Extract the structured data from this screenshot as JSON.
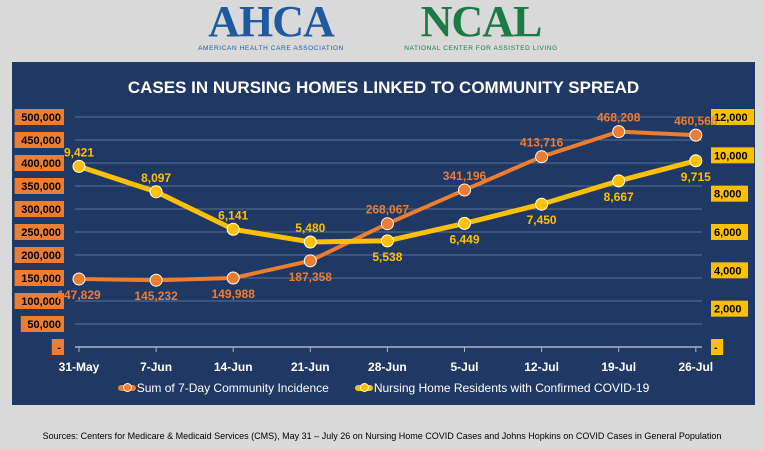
{
  "logos": {
    "ahca": {
      "name": "AHCA",
      "subtitle": "AMERICAN HEALTH CARE ASSOCIATION"
    },
    "ncal": {
      "name": "NCAL",
      "subtitle": "NATIONAL CENTER FOR ASSISTED LIVING"
    }
  },
  "colors": {
    "background": "#d9d9d9",
    "panel": "#203864",
    "orange": "#ed7d31",
    "yellow": "#ffc000"
  },
  "chart_data": {
    "type": "line",
    "title": "CASES IN NURSING HOMES LINKED TO COMMUNITY SPREAD",
    "categories": [
      "31-May",
      "7-Jun",
      "14-Jun",
      "21-Jun",
      "28-Jun",
      "5-Jul",
      "12-Jul",
      "19-Jul",
      "26-Jul"
    ],
    "left_axis": {
      "range": [
        0,
        500000
      ],
      "ticks": [
        "-",
        "50,000",
        "100,000",
        "150,000",
        "200,000",
        "250,000",
        "300,000",
        "350,000",
        "400,000",
        "450,000",
        "500,000"
      ]
    },
    "right_axis": {
      "range": [
        0,
        12000
      ],
      "ticks": [
        "-",
        "2,000",
        "4,000",
        "6,000",
        "8,000",
        "10,000",
        "12,000"
      ]
    },
    "grid": true,
    "legend": "bottom",
    "series": [
      {
        "name": "Sum of 7-Day Community Incidence",
        "axis": "left",
        "color": "#ed7d31",
        "values": [
          147829,
          145232,
          149988,
          187358,
          268067,
          341196,
          413716,
          468208,
          460568
        ],
        "labels": [
          "147,829",
          "145,232",
          "149,988",
          "187,358",
          "268,067",
          "341,196",
          "413,716",
          "468,208",
          "460,568"
        ]
      },
      {
        "name": "Nursing Home Residents with Confirmed COVID-19",
        "axis": "right",
        "color": "#ffc000",
        "values": [
          9421,
          8097,
          6141,
          5480,
          5538,
          6449,
          7450,
          8667,
          9715
        ],
        "labels": [
          "9,421",
          "8,097",
          "6,141",
          "5,480",
          "5,538",
          "6,449",
          "7,450",
          "8,667",
          "9,715"
        ]
      }
    ]
  },
  "source": "Sources: Centers for Medicare & Medicaid Services (CMS), May 31 – July 26 on Nursing Home COVID Cases and Johns Hopkins on COVID Cases in General Population"
}
